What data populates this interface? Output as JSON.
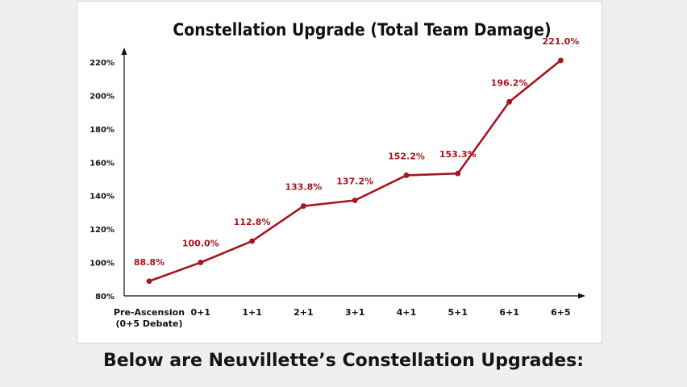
{
  "caption": "Below are Neuvillette’s Constellation Upgrades:",
  "watermark": "",
  "colors": {
    "series": "#a5161f",
    "axis": "#111111",
    "background": "#efefef",
    "card": "#ffffff"
  },
  "chart_data": {
    "type": "line",
    "title": "Constellation Upgrade (Total Team Damage)",
    "xlabel": "",
    "ylabel": "",
    "categories": [
      [
        "Pre-Ascension",
        "(0+5 Debate)"
      ],
      [
        "0+1"
      ],
      [
        "1+1"
      ],
      [
        "2+1"
      ],
      [
        "3+1"
      ],
      [
        "4+1"
      ],
      [
        "5+1"
      ],
      [
        "6+1"
      ],
      [
        "6+5"
      ]
    ],
    "series": [
      {
        "values": [
          88.8,
          100.0,
          112.8,
          133.8,
          137.2,
          152.2,
          153.3,
          196.2,
          221.0
        ],
        "labels": [
          "88.8%",
          "100.0%",
          "112.8%",
          "133.8%",
          "137.2%",
          "152.2%",
          "153.3%",
          "196.2%",
          "221.0%"
        ]
      }
    ],
    "ylim": [
      80,
      220
    ],
    "yticks": [
      "80%",
      "100%",
      "120%",
      "140%",
      "160%",
      "180%",
      "200%",
      "220%"
    ],
    "grid": false,
    "legend": "none"
  }
}
